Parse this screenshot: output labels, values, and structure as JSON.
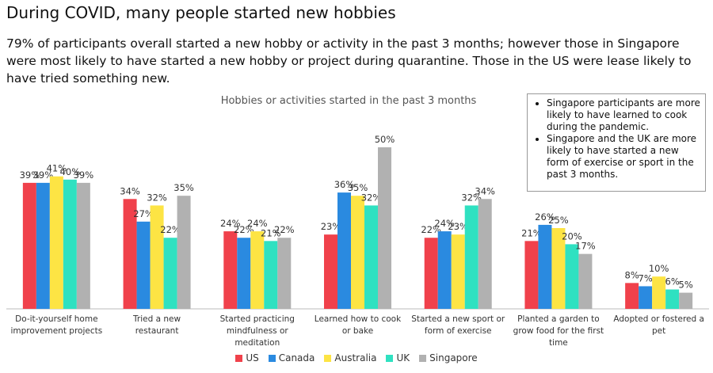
{
  "chart_data": {
    "type": "bar",
    "title": "During COVID, many people started new hobbies",
    "subtitle": "79% of participants overall started a new hobby or activity in the past 3 months; however those in Singapore were most likely to have started a new hobby or project during quarantine. Those in the US were lease likely to have tried something new.",
    "chart_title": "Hobbies or activities started in the past 3 months",
    "annotations": [
      "Singapore participants are more likely to have learned to cook during the pandemic.",
      "Singapore and the UK are more likely to have started a new form of exercise or sport in the past 3 months."
    ],
    "categories": [
      "Do-it-yourself home improvement projects",
      "Tried a new restaurant",
      "Started practicing mindfulness or meditation",
      "Learned how to cook or bake",
      "Started a new sport or form of exercise",
      "Planted a garden to grow food for the first time",
      "Adopted or fostered a pet"
    ],
    "series": [
      {
        "name": "US",
        "color": "#f0414b",
        "values": [
          39,
          34,
          24,
          23,
          22,
          21,
          8
        ],
        "value_labels": [
          "39%",
          "34%",
          "24%",
          "23%",
          "22%",
          "21%",
          "8%"
        ]
      },
      {
        "name": "Canada",
        "color": "#2a8ae0",
        "values": [
          39,
          27,
          22,
          36,
          24,
          26,
          7
        ],
        "value_labels": [
          "39%",
          "27%",
          "22%",
          "36%",
          "24%",
          "26%",
          "7%"
        ]
      },
      {
        "name": "Australia",
        "color": "#fde444",
        "values": [
          41,
          32,
          24,
          35,
          23,
          25,
          10
        ],
        "value_labels": [
          "41%",
          "32%",
          "24%",
          "35%",
          "23%",
          "25%",
          "10%"
        ]
      },
      {
        "name": "UK",
        "color": "#2fe1c1",
        "values": [
          40,
          22,
          21,
          32,
          32,
          20,
          6
        ],
        "value_labels": [
          "40%",
          "22%",
          "21%",
          "32%",
          "32%",
          "20%",
          "6%"
        ]
      },
      {
        "name": "Singapore",
        "color": "#b1b1b1",
        "values": [
          39,
          35,
          22,
          50,
          34,
          17,
          5
        ],
        "value_labels": [
          "39%",
          "35%",
          "22%",
          "50%",
          "34%",
          "17%",
          "5%"
        ]
      }
    ]
  }
}
